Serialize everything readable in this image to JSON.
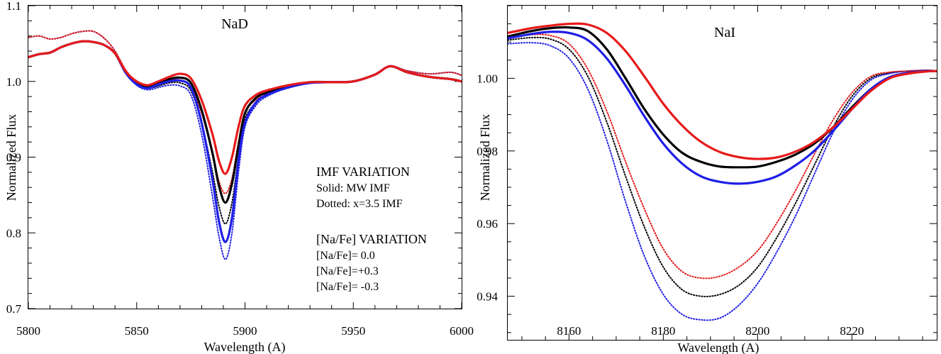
{
  "chart_data": [
    {
      "type": "line",
      "title": "NaD",
      "xlabel": "Wavelength (A)",
      "ylabel": "Normalized Flux",
      "xlim": [
        5800,
        6000
      ],
      "ylim": [
        0.7,
        1.1
      ],
      "xticks": [
        5800,
        5850,
        5900,
        5950,
        6000
      ],
      "xtick_labels": [
        "5800",
        "5850",
        "5900",
        "5950",
        "6000"
      ],
      "yticks": [
        0.7,
        0.8,
        0.9,
        1.0,
        1.1
      ],
      "ytick_labels": [
        "0.7",
        "0.8",
        "0.9",
        "1.0",
        "1.1"
      ],
      "grid": false,
      "legend": {
        "imf_title": "IMF VARIATION",
        "imf_solid": "Solid: MW IMF",
        "imf_dotted": "Dotted: x=3.5 IMF",
        "nafe_title": "[Na/Fe] VARIATION",
        "entries": [
          {
            "label": "[Na/Fe]=  0.0",
            "color": "#000000"
          },
          {
            "label": "[Na/Fe]=+0.3",
            "color": "#1f1fe6"
          },
          {
            "label": "[Na/Fe]= -0.3",
            "color": "#e61a1a"
          }
        ]
      },
      "series": [
        {
          "color": "#000000",
          "style": "solid",
          "x": [
            5800,
            5805,
            5810,
            5815,
            5820,
            5825,
            5830,
            5835,
            5840,
            5845,
            5850,
            5855,
            5860,
            5865,
            5870,
            5875,
            5880,
            5885,
            5888,
            5891,
            5894,
            5897,
            5900,
            5905,
            5910,
            5920,
            5930,
            5940,
            5950,
            5960,
            5967,
            5975,
            5985,
            5995,
            6000
          ],
          "y": [
            1.032,
            1.036,
            1.038,
            1.045,
            1.05,
            1.053,
            1.052,
            1.048,
            1.037,
            1.012,
            0.998,
            0.993,
            0.998,
            1.003,
            1.005,
            0.998,
            0.962,
            0.905,
            0.862,
            0.84,
            0.865,
            0.915,
            0.958,
            0.978,
            0.985,
            0.993,
            0.999,
            0.999,
            1.0,
            1.009,
            1.02,
            1.012,
            1.006,
            1.003,
            1.0
          ]
        },
        {
          "color": "#1f1fe6",
          "style": "solid",
          "x": [
            5800,
            5805,
            5810,
            5815,
            5820,
            5825,
            5830,
            5835,
            5840,
            5845,
            5850,
            5855,
            5860,
            5865,
            5870,
            5875,
            5880,
            5885,
            5888,
            5891,
            5894,
            5897,
            5900,
            5905,
            5910,
            5920,
            5930,
            5940,
            5950,
            5960,
            5967,
            5975,
            5985,
            5995,
            6000
          ],
          "y": [
            1.032,
            1.036,
            1.038,
            1.045,
            1.05,
            1.053,
            1.052,
            1.048,
            1.037,
            1.011,
            0.996,
            0.991,
            0.996,
            1.0,
            1.001,
            0.992,
            0.945,
            0.87,
            0.815,
            0.788,
            0.82,
            0.895,
            0.945,
            0.972,
            0.982,
            0.992,
            0.998,
            0.999,
            1.0,
            1.009,
            1.02,
            1.012,
            1.006,
            1.003,
            1.0
          ]
        },
        {
          "color": "#e61a1a",
          "style": "solid",
          "x": [
            5800,
            5805,
            5810,
            5815,
            5820,
            5825,
            5830,
            5835,
            5840,
            5845,
            5850,
            5855,
            5860,
            5865,
            5870,
            5875,
            5880,
            5885,
            5888,
            5891,
            5894,
            5897,
            5900,
            5905,
            5910,
            5920,
            5930,
            5940,
            5950,
            5960,
            5967,
            5975,
            5985,
            5995,
            6000
          ],
          "y": [
            1.032,
            1.036,
            1.038,
            1.045,
            1.05,
            1.053,
            1.052,
            1.048,
            1.037,
            1.013,
            1.0,
            0.995,
            1.0,
            1.006,
            1.01,
            1.004,
            0.975,
            0.93,
            0.895,
            0.878,
            0.9,
            0.94,
            0.968,
            0.982,
            0.988,
            0.995,
            0.999,
            0.999,
            1.0,
            1.009,
            1.02,
            1.012,
            1.006,
            1.003,
            1.0
          ]
        },
        {
          "color": "#000000",
          "style": "dotted",
          "x": [
            5800,
            5805,
            5810,
            5815,
            5820,
            5825,
            5830,
            5835,
            5840,
            5845,
            5850,
            5855,
            5860,
            5865,
            5870,
            5875,
            5880,
            5885,
            5888,
            5891,
            5894,
            5897,
            5900,
            5905,
            5910,
            5920,
            5930,
            5940,
            5950,
            5960,
            5967,
            5975,
            5985,
            5995,
            6000
          ],
          "y": [
            1.058,
            1.06,
            1.056,
            1.058,
            1.063,
            1.066,
            1.066,
            1.057,
            1.04,
            1.014,
            0.997,
            0.991,
            0.994,
            0.998,
            0.998,
            0.988,
            0.945,
            0.88,
            0.835,
            0.812,
            0.84,
            0.9,
            0.95,
            0.972,
            0.983,
            0.993,
            0.999,
            0.999,
            1.0,
            1.009,
            1.02,
            1.014,
            1.01,
            1.012,
            1.008
          ]
        },
        {
          "color": "#1f1fe6",
          "style": "dotted",
          "x": [
            5800,
            5805,
            5810,
            5815,
            5820,
            5825,
            5830,
            5835,
            5840,
            5845,
            5850,
            5855,
            5860,
            5865,
            5870,
            5875,
            5880,
            5885,
            5888,
            5891,
            5894,
            5897,
            5900,
            5905,
            5910,
            5920,
            5930,
            5940,
            5950,
            5960,
            5967,
            5975,
            5985,
            5995,
            6000
          ],
          "y": [
            1.058,
            1.06,
            1.056,
            1.058,
            1.063,
            1.066,
            1.066,
            1.057,
            1.04,
            1.013,
            0.995,
            0.989,
            0.992,
            0.995,
            0.994,
            0.982,
            0.93,
            0.848,
            0.795,
            0.765,
            0.8,
            0.88,
            0.94,
            0.968,
            0.98,
            0.992,
            0.998,
            0.999,
            1.0,
            1.009,
            1.02,
            1.014,
            1.01,
            1.012,
            1.008
          ]
        },
        {
          "color": "#e61a1a",
          "style": "dotted",
          "x": [
            5800,
            5805,
            5810,
            5815,
            5820,
            5825,
            5830,
            5835,
            5840,
            5845,
            5850,
            5855,
            5860,
            5865,
            5870,
            5875,
            5880,
            5885,
            5888,
            5891,
            5894,
            5897,
            5900,
            5905,
            5910,
            5920,
            5930,
            5940,
            5950,
            5960,
            5967,
            5975,
            5985,
            5995,
            6000
          ],
          "y": [
            1.058,
            1.06,
            1.056,
            1.058,
            1.063,
            1.066,
            1.066,
            1.057,
            1.04,
            1.015,
            0.999,
            0.993,
            0.996,
            1.001,
            1.002,
            0.993,
            0.958,
            0.905,
            0.868,
            0.852,
            0.872,
            0.92,
            0.958,
            0.976,
            0.985,
            0.994,
            0.999,
            0.999,
            1.0,
            1.009,
            1.02,
            1.014,
            1.01,
            1.012,
            1.008
          ]
        }
      ]
    },
    {
      "type": "line",
      "title": "NaI",
      "xlabel": "Wavelength (A)",
      "ylabel": "Normalized Flux",
      "xlim": [
        8147,
        8238
      ],
      "ylim": [
        0.928,
        1.02
      ],
      "xticks": [
        8160,
        8180,
        8200,
        8220
      ],
      "xtick_labels": [
        "8160",
        "8180",
        "8200",
        "8220"
      ],
      "yticks": [
        0.94,
        0.96,
        0.98,
        1.0
      ],
      "ytick_labels": [
        "0.94",
        "0.96",
        "0.98",
        "1.00"
      ],
      "grid": false,
      "series": [
        {
          "color": "#000000",
          "style": "solid",
          "x": [
            8147,
            8152,
            8156,
            8160,
            8164,
            8168,
            8172,
            8176,
            8180,
            8184,
            8188,
            8192,
            8196,
            8200,
            8204,
            8208,
            8212,
            8216,
            8220,
            8224,
            8228,
            8232,
            8236,
            8238
          ],
          "y": [
            1.0115,
            1.013,
            1.0138,
            1.014,
            1.013,
            1.008,
            1.0,
            0.9915,
            0.9845,
            0.9795,
            0.977,
            0.9757,
            0.9755,
            0.9757,
            0.977,
            0.979,
            0.982,
            0.9865,
            0.992,
            0.997,
            1.0003,
            1.0015,
            1.002,
            1.002
          ]
        },
        {
          "color": "#1f1fe6",
          "style": "solid",
          "x": [
            8147,
            8152,
            8156,
            8160,
            8164,
            8168,
            8172,
            8176,
            8180,
            8184,
            8188,
            8192,
            8196,
            8200,
            8204,
            8208,
            8212,
            8216,
            8220,
            8224,
            8228,
            8232,
            8236,
            8238
          ],
          "y": [
            1.011,
            1.0122,
            1.0128,
            1.0125,
            1.0105,
            1.0055,
            0.998,
            0.9895,
            0.982,
            0.9765,
            0.973,
            0.9715,
            0.971,
            0.9715,
            0.973,
            0.976,
            0.98,
            0.9855,
            0.9915,
            0.997,
            1.0003,
            1.0015,
            1.002,
            1.002
          ]
        },
        {
          "color": "#e61a1a",
          "style": "solid",
          "x": [
            8147,
            8152,
            8156,
            8160,
            8164,
            8168,
            8172,
            8176,
            8180,
            8184,
            8188,
            8192,
            8196,
            8200,
            8204,
            8208,
            8212,
            8216,
            8220,
            8224,
            8228,
            8232,
            8236,
            8238
          ],
          "y": [
            1.0125,
            1.0138,
            1.0145,
            1.015,
            1.0148,
            1.0125,
            1.0075,
            1.0005,
            0.993,
            0.987,
            0.9825,
            0.9797,
            0.9783,
            0.9778,
            0.9782,
            0.9798,
            0.9825,
            0.9865,
            0.9915,
            0.9965,
            1.0,
            1.0013,
            1.0019,
            1.002
          ]
        },
        {
          "color": "#000000",
          "style": "dotted",
          "x": [
            8147,
            8152,
            8156,
            8160,
            8164,
            8168,
            8172,
            8176,
            8180,
            8184,
            8188,
            8192,
            8196,
            8200,
            8204,
            8208,
            8212,
            8216,
            8220,
            8224,
            8228,
            8232,
            8236,
            8238
          ],
          "y": [
            1.0105,
            1.0112,
            1.0108,
            1.008,
            1.0005,
            0.988,
            0.973,
            0.959,
            0.948,
            0.9418,
            0.94,
            0.9405,
            0.943,
            0.948,
            0.956,
            0.9655,
            0.976,
            0.9865,
            0.995,
            1.0,
            1.0015,
            1.002,
            1.0022,
            1.002
          ]
        },
        {
          "color": "#1f1fe6",
          "style": "dotted",
          "x": [
            8147,
            8152,
            8156,
            8160,
            8164,
            8168,
            8172,
            8176,
            8180,
            8184,
            8188,
            8192,
            8196,
            8200,
            8204,
            8208,
            8212,
            8216,
            8220,
            8224,
            8228,
            8232,
            8236,
            8238
          ],
          "y": [
            1.0095,
            1.0098,
            1.009,
            1.0055,
            0.997,
            0.983,
            0.966,
            0.951,
            0.9405,
            0.935,
            0.9335,
            0.934,
            0.9375,
            0.9435,
            0.952,
            0.962,
            0.9735,
            0.985,
            0.994,
            0.9995,
            1.0013,
            1.002,
            1.0022,
            1.002
          ]
        },
        {
          "color": "#e61a1a",
          "style": "dotted",
          "x": [
            8147,
            8152,
            8156,
            8160,
            8164,
            8168,
            8172,
            8176,
            8180,
            8184,
            8188,
            8192,
            8196,
            8200,
            8204,
            8208,
            8212,
            8216,
            8220,
            8224,
            8228,
            8232,
            8236,
            8238
          ],
          "y": [
            1.0112,
            1.012,
            1.0118,
            1.0095,
            1.0025,
            0.991,
            0.977,
            0.964,
            0.953,
            0.9468,
            0.945,
            0.9455,
            0.948,
            0.9525,
            0.96,
            0.969,
            0.979,
            0.9885,
            0.996,
            1.0005,
            1.0017,
            1.002,
            1.0022,
            1.002
          ]
        }
      ]
    }
  ]
}
